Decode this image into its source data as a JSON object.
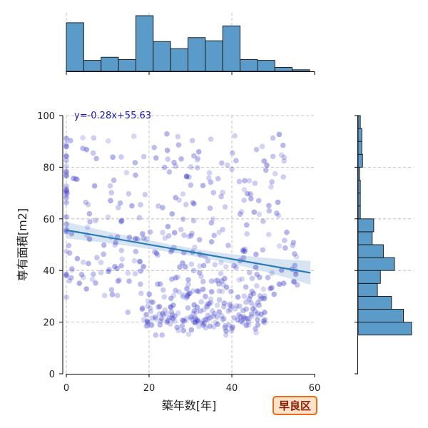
{
  "chart_data": {
    "type": "scatter",
    "xlabel": "築年数[年]",
    "ylabel": "専有面積[m2]",
    "xlim": [
      0,
      60
    ],
    "ylim": [
      0,
      100
    ],
    "x_ticks": [
      0,
      20,
      40,
      60
    ],
    "y_ticks": [
      0,
      20,
      40,
      60,
      80,
      100
    ],
    "grid": true,
    "regression": {
      "label": "y=-0.28x+55.63",
      "slope": -0.28,
      "intercept": 55.63,
      "x_range": [
        0,
        59
      ],
      "ci_band_halfwidth": [
        3.2,
        1.5,
        4.6
      ],
      "line_color": "#2a7ab8",
      "band_color": "#cfe0ee"
    },
    "point_color": "#3232c8",
    "scatter_point_count": 520,
    "top_histogram": {
      "bin_edges": [
        0,
        4.2,
        8.4,
        12.6,
        16.8,
        21,
        25.2,
        29.4,
        33.6,
        37.8,
        42,
        46.2,
        50.4,
        54.6,
        58.8
      ],
      "counts": [
        62,
        14,
        18,
        15,
        71,
        38,
        29,
        43,
        39,
        58,
        15,
        14,
        5,
        2
      ]
    },
    "right_histogram": {
      "bin_edges": [
        15,
        20,
        25,
        30,
        35,
        40,
        45,
        50,
        55,
        60,
        65,
        70,
        75,
        80,
        85,
        90,
        95,
        100
      ],
      "counts": [
        72,
        61,
        45,
        26,
        30,
        49,
        34,
        19,
        21,
        3,
        3,
        3,
        2,
        6,
        5,
        5,
        3
      ]
    },
    "hist_color": "#5b9bc9",
    "badge": {
      "text": "早良区",
      "fill": "#fce2c8",
      "border": "#e86a1c"
    }
  }
}
